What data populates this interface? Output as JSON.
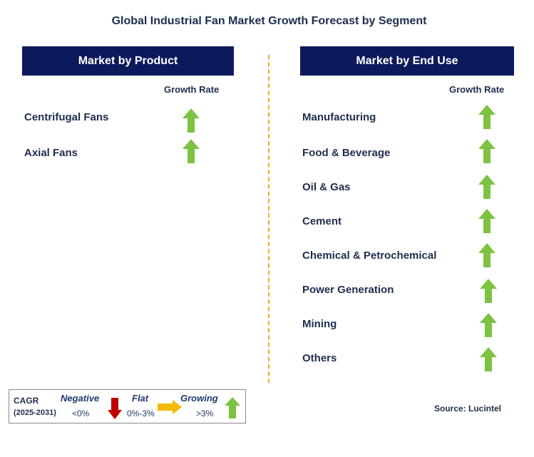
{
  "title": "Global Industrial Fan Market Growth Forecast by Segment",
  "left_panel": {
    "header": "Market by Product",
    "growth_rate_label": "Growth Rate",
    "items": [
      {
        "label": "Centrifugal Fans",
        "trend": "growing"
      },
      {
        "label": "Axial Fans",
        "trend": "growing"
      }
    ]
  },
  "right_panel": {
    "header": "Market by End Use",
    "growth_rate_label": "Growth Rate",
    "items": [
      {
        "label": "Manufacturing",
        "trend": "growing"
      },
      {
        "label": "Food & Beverage",
        "trend": "growing"
      },
      {
        "label": "Oil & Gas",
        "trend": "growing"
      },
      {
        "label": "Cement",
        "trend": "growing"
      },
      {
        "label": "Chemical & Petrochemical",
        "trend": "growing"
      },
      {
        "label": "Power Generation",
        "trend": "growing"
      },
      {
        "label": "Mining",
        "trend": "growing"
      },
      {
        "label": "Others",
        "trend": "growing"
      }
    ]
  },
  "legend": {
    "cagr_label": "CAGR",
    "period": "(2025-2031)",
    "negative": {
      "label": "Negative",
      "range": "<0%"
    },
    "flat": {
      "label": "Flat",
      "range": "0%-3%"
    },
    "growing": {
      "label": "Growing",
      "range": ">3%"
    }
  },
  "source": "Source: Lucintel",
  "colors": {
    "header_bg": "#0c1a5c",
    "growing_arrow": "#7dc242",
    "negative_arrow": "#c00000",
    "flat_arrow": "#f5b800",
    "divider": "#f5a623"
  }
}
